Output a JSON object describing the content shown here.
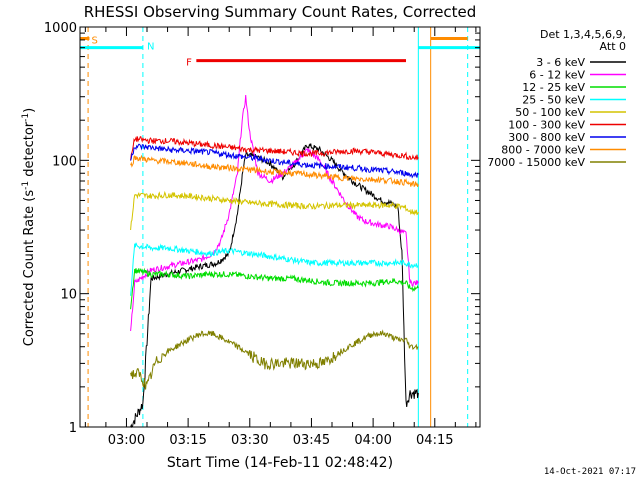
{
  "chart_data": {
    "type": "line",
    "title": "RHESSI Observing Summary Count Rates, Corrected",
    "xlabel": "Start Time (14-Feb-11 02:48:42)",
    "ylabel": "Corrected Count Rate (s",
    "ylabel_sup1": "-1",
    "ylabel_mid": " detector",
    "ylabel_sup2": "-1",
    "ylabel_end": ")",
    "yscale": "log",
    "xlim": [
      "02:48:42",
      "04:26:00"
    ],
    "ylim": [
      1,
      1000
    ],
    "x_ticks": [
      "03:00",
      "03:15",
      "03:30",
      "03:45",
      "04:00",
      "04:15"
    ],
    "y_ticks": [
      "1",
      "10",
      "100",
      "1000"
    ],
    "legend_header": [
      "Det 1,3,4,5,6,9,",
      "Att 0"
    ],
    "legend_placement": "right",
    "footer_date": "14-Oct-2021 07:17",
    "colors": {
      "3 - 6 keV": "#000000",
      "6 - 12 keV": "#ff00ff",
      "12 - 25 keV": "#00dd00",
      "25 - 50 keV": "#00ffff",
      "50 - 100 keV": "#d4c400",
      "100 - 300 keV": "#ee0000",
      "300 - 800 keV": "#0000ee",
      "800 - 7000 keV": "#ff8c00",
      "7000 - 15000 keV": "#808000"
    },
    "flags": [
      {
        "label": "S",
        "color": "#ff8c00",
        "start": "02:48:42",
        "end": "02:51:00",
        "level": 820
      },
      {
        "label": "S",
        "color": "#ff8c00",
        "start": "04:14:00",
        "end": "04:23:00",
        "level": 820
      },
      {
        "label": "N",
        "color": "#00ffff",
        "start": "02:48:42",
        "end": "03:04:00",
        "level": 700
      },
      {
        "label": "N",
        "color": "#00ffff",
        "start": "04:11:00",
        "end": "04:26:00",
        "level": 700
      },
      {
        "label": "F",
        "color": "#ee0000",
        "start": "03:17:00",
        "end": "04:08:00",
        "level": 560
      }
    ],
    "markers": [
      {
        "time": "02:50:40",
        "color": "#ff8c00",
        "dashed": true
      },
      {
        "time": "03:04:00",
        "color": "#00ffff",
        "dashed": true
      },
      {
        "time": "04:11:00",
        "color": "#00ffff",
        "dashed": false
      },
      {
        "time": "04:14:00",
        "color": "#ff8c00",
        "dashed": false
      },
      {
        "time": "04:23:00",
        "color": "#00ffff",
        "dashed": true
      }
    ],
    "series": [
      {
        "name": "3 - 6 keV",
        "x": [
          "03:01",
          "03:04",
          "03:06",
          "03:10",
          "03:14",
          "03:18",
          "03:22",
          "03:25",
          "03:27",
          "03:28",
          "03:29",
          "03:32",
          "03:35",
          "03:38",
          "03:41",
          "03:44",
          "03:47",
          "03:50",
          "03:52",
          "03:55",
          "03:58",
          "04:00",
          "04:02",
          "04:04",
          "04:06",
          "04:07",
          "04:08",
          "04:09",
          "04:10",
          "04:11"
        ],
        "y": [
          1,
          1.5,
          13,
          14,
          15,
          16,
          17,
          20,
          40,
          70,
          110,
          105,
          95,
          75,
          95,
          130,
          120,
          100,
          85,
          70,
          60,
          55,
          50,
          48,
          45,
          20,
          1.5,
          1.8,
          1.8,
          1.8
        ]
      },
      {
        "name": "6 - 12 keV",
        "x": [
          "03:01",
          "03:02",
          "03:06",
          "03:10",
          "03:14",
          "03:18",
          "03:21",
          "03:23",
          "03:25",
          "03:27",
          "03:28",
          "03:29",
          "03:30",
          "03:32",
          "03:35",
          "03:38",
          "03:41",
          "03:44",
          "03:47",
          "03:50",
          "03:53",
          "03:56",
          "03:58",
          "04:01",
          "04:04",
          "04:06",
          "04:08",
          "04:09",
          "04:10",
          "04:11"
        ],
        "y": [
          5,
          12,
          15,
          16,
          17,
          18,
          20,
          25,
          40,
          80,
          180,
          300,
          160,
          80,
          70,
          80,
          95,
          120,
          100,
          70,
          50,
          38,
          35,
          33,
          32,
          30,
          28,
          12,
          12,
          12
        ]
      },
      {
        "name": "12 - 25 keV",
        "x": [
          "03:01",
          "03:02",
          "03:06",
          "03:10",
          "03:15",
          "03:20",
          "03:25",
          "03:30",
          "03:35",
          "03:40",
          "03:45",
          "03:50",
          "03:55",
          "04:00",
          "04:05",
          "04:08",
          "04:09",
          "04:11"
        ],
        "y": [
          8,
          15,
          14,
          14,
          13.5,
          14,
          14,
          13.5,
          13,
          13,
          12.5,
          12,
          12,
          12,
          12.5,
          12,
          11,
          11
        ]
      },
      {
        "name": "25 - 50 keV",
        "x": [
          "03:01",
          "03:02",
          "03:06",
          "03:10",
          "03:15",
          "03:20",
          "03:25",
          "03:30",
          "03:35",
          "03:40",
          "03:45",
          "03:50",
          "03:55",
          "04:00",
          "04:05",
          "04:08",
          "04:09",
          "04:11"
        ],
        "y": [
          10,
          23,
          22,
          22,
          21,
          20,
          21,
          20,
          19,
          18,
          17,
          17,
          17,
          17,
          17,
          17,
          16.5,
          16.5
        ]
      },
      {
        "name": "50 - 100 keV",
        "x": [
          "03:01",
          "03:02",
          "03:06",
          "03:10",
          "03:15",
          "03:20",
          "03:25",
          "03:30",
          "03:35",
          "03:40",
          "03:45",
          "03:50",
          "03:55",
          "04:00",
          "04:05",
          "04:08",
          "04:09",
          "04:11"
        ],
        "y": [
          30,
          55,
          54,
          55,
          54,
          52,
          50,
          48,
          47,
          46,
          45,
          46,
          46,
          46,
          46,
          44,
          41,
          41
        ]
      },
      {
        "name": "100 - 300 keV",
        "x": [
          "03:01",
          "03:02",
          "03:06",
          "03:10",
          "03:15",
          "03:20",
          "03:25",
          "03:30",
          "03:35",
          "03:40",
          "03:45",
          "03:50",
          "03:55",
          "04:00",
          "04:05",
          "04:08",
          "04:09",
          "04:11"
        ],
        "y": [
          100,
          145,
          140,
          140,
          135,
          130,
          125,
          120,
          118,
          115,
          112,
          115,
          118,
          115,
          110,
          108,
          105,
          105
        ]
      },
      {
        "name": "300 - 800 keV",
        "x": [
          "03:01",
          "03:02",
          "03:06",
          "03:10",
          "03:15",
          "03:20",
          "03:25",
          "03:30",
          "03:35",
          "03:40",
          "03:45",
          "03:50",
          "03:55",
          "04:00",
          "04:05",
          "04:08",
          "04:09",
          "04:11"
        ],
        "y": [
          100,
          128,
          125,
          120,
          118,
          115,
          110,
          105,
          100,
          95,
          92,
          90,
          88,
          85,
          82,
          80,
          78,
          78
        ]
      },
      {
        "name": "800 - 7000 keV",
        "x": [
          "03:01",
          "03:02",
          "03:06",
          "03:10",
          "03:15",
          "03:20",
          "03:25",
          "03:30",
          "03:35",
          "03:40",
          "03:45",
          "03:50",
          "03:55",
          "04:00",
          "04:05",
          "04:08",
          "04:09",
          "04:11"
        ],
        "y": [
          90,
          105,
          100,
          98,
          95,
          90,
          88,
          85,
          82,
          80,
          78,
          75,
          73,
          72,
          70,
          68,
          66,
          66
        ]
      },
      {
        "name": "7000 - 15000 keV",
        "x": [
          "03:01",
          "03:03",
          "03:05",
          "03:07",
          "03:09",
          "03:12",
          "03:15",
          "03:18",
          "03:21",
          "03:24",
          "03:27",
          "03:30",
          "03:33",
          "03:36",
          "03:39",
          "03:42",
          "03:45",
          "03:48",
          "03:51",
          "03:54",
          "03:57",
          "04:00",
          "04:03",
          "04:06",
          "04:08",
          "04:09",
          "04:11"
        ],
        "y": [
          2.5,
          2.5,
          2,
          3,
          3.5,
          4,
          4.5,
          5,
          5,
          4.5,
          4,
          3.5,
          3,
          3,
          3,
          3,
          3,
          3,
          3.5,
          4,
          4.5,
          5,
          5,
          4.5,
          4.5,
          4,
          4
        ]
      }
    ]
  }
}
